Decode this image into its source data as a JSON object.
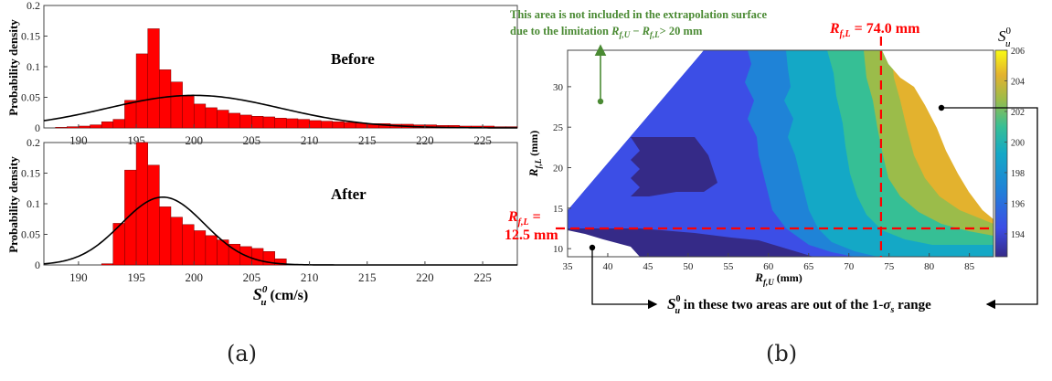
{
  "panel_labels": {
    "a": "(a)",
    "b": "(b)"
  },
  "chart_data": [
    {
      "type": "bar",
      "title": "Before",
      "ylabel": "Probability density",
      "xlim": [
        187,
        228
      ],
      "ylim": [
        0,
        0.2
      ],
      "xticks": [
        190,
        195,
        200,
        205,
        210,
        215,
        220,
        225
      ],
      "yticks": [
        0,
        0.05,
        0.1,
        0.15,
        0.2
      ],
      "bin_width": 1,
      "bin_start": 188,
      "values": [
        0.001,
        0.002,
        0.003,
        0.005,
        0.01,
        0.014,
        0.045,
        0.121,
        0.162,
        0.095,
        0.075,
        0.052,
        0.039,
        0.033,
        0.029,
        0.024,
        0.021,
        0.019,
        0.018,
        0.016,
        0.015,
        0.014,
        0.012,
        0.011,
        0.01,
        0.009,
        0.008,
        0.007,
        0.007,
        0.006,
        0.006,
        0.005,
        0.005,
        0.004,
        0.004,
        0.003,
        0.003,
        0.003,
        0.002,
        0.002
      ],
      "fit": {
        "mean": 200,
        "std": 7.5
      },
      "bar_color": "#ff0000",
      "fit_color": "#000000"
    },
    {
      "type": "bar",
      "title": "After",
      "ylabel": "Probability density",
      "xlabel_main": "S",
      "xlabel_sub": "u",
      "xlabel_sup": "0",
      "xlabel_unit": "(cm/s)",
      "xlim": [
        187,
        228
      ],
      "ylim": [
        0,
        0.2
      ],
      "xticks": [
        190,
        195,
        200,
        205,
        210,
        215,
        220,
        225
      ],
      "yticks": [
        0,
        0.05,
        0.1,
        0.15,
        0.2
      ],
      "bin_width": 1,
      "bin_start": 192,
      "values": [
        0.002,
        0.068,
        0.155,
        0.205,
        0.163,
        0.095,
        0.078,
        0.066,
        0.056,
        0.048,
        0.041,
        0.034,
        0.03,
        0.027,
        0.022,
        0.01
      ],
      "fit": {
        "mean": 197.3,
        "std": 3.6
      },
      "bar_color": "#ff0000",
      "fit_color": "#000000"
    },
    {
      "type": "heatmap",
      "xlabel_main": "R",
      "xlabel_sub": "f,U",
      "xlabel_unit": "(mm)",
      "ylabel_main": "R",
      "ylabel_sub": "f,L",
      "ylabel_unit": "(mm)",
      "xlim": [
        35,
        88
      ],
      "ylim": [
        9,
        34.5
      ],
      "xticks": [
        35,
        40,
        45,
        50,
        55,
        60,
        65,
        70,
        75,
        80,
        85
      ],
      "yticks": [
        10,
        15,
        20,
        25,
        30
      ],
      "colorbar_title_main": "S",
      "colorbar_title_sub": "u",
      "colorbar_title_sup": "0",
      "colorbar_ticks": [
        194,
        196,
        198,
        200,
        202,
        204,
        206
      ],
      "colorbar_range": [
        192.5,
        206
      ],
      "colormap": [
        "#352a87",
        "#3c4ee6",
        "#1f83d7",
        "#14a8c6",
        "#36bf95",
        "#9bbc4a",
        "#e3b22e",
        "#f9fa14"
      ],
      "vertical_line_x": 74.0,
      "horizontal_line_y": 12.5,
      "line_color": "#ff0000",
      "annotations": {
        "top_note_line1": "This area is not included in the extrapolation surface",
        "top_note_line2_prefix": "due to the  limitation ",
        "top_note_line2_math": "R",
        "top_note_line2_sub1": "f,U",
        "top_note_line2_minus": " − ",
        "top_note_line2_math2": "R",
        "top_note_line2_sub2": "f,L",
        "top_note_line2_suffix": "> 20 mm",
        "top_note_color": "#4a8a33",
        "vline_label_main": "R",
        "vline_label_sub": "f,L",
        "vline_label_value": " = 74.0 mm",
        "hline_label_line1_main": "R",
        "hline_label_line1_sub": "f,L",
        "hline_label_line1_eq": " =",
        "hline_label_line2": "12.5 mm",
        "bottom_note_main": "S",
        "bottom_note_sub": "u",
        "bottom_note_sup": "0",
        "bottom_note_text": " in these two areas are out of the 1-",
        "bottom_note_sigma": "σ",
        "bottom_note_sigma_sub": "s",
        "bottom_note_end": " range"
      }
    }
  ]
}
